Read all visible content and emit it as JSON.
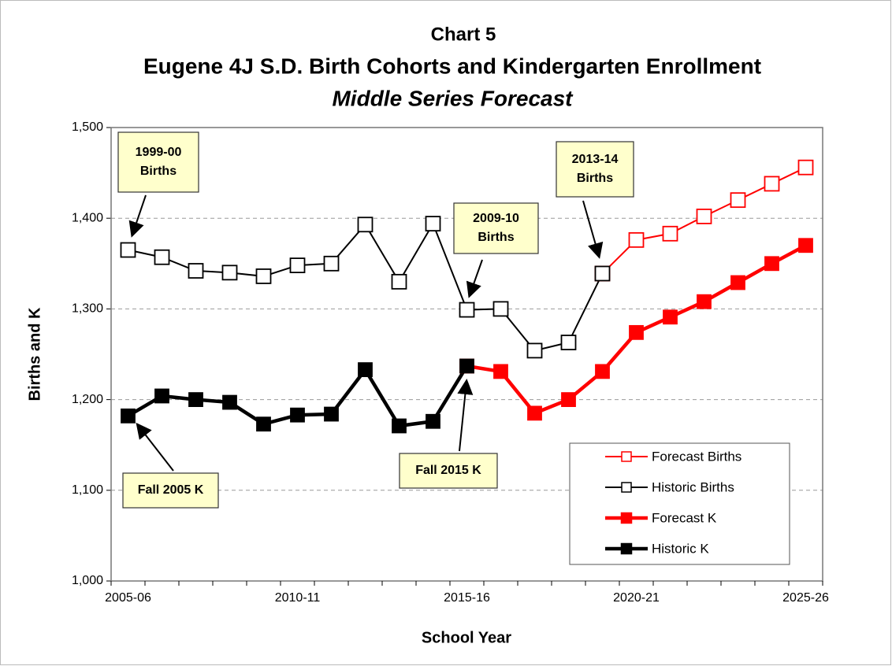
{
  "chart_data": {
    "type": "line",
    "title": "Chart 5",
    "subtitle": "Eugene 4J S.D. Birth Cohorts and Kindergarten Enrollment",
    "subtitle2": "Middle Series Forecast",
    "x_label": "School Year",
    "y_label": "Births and K",
    "categories": [
      "2005-06",
      null,
      null,
      null,
      null,
      "2010-11",
      null,
      null,
      null,
      null,
      "2015-16",
      null,
      null,
      null,
      null,
      "2020-21",
      null,
      null,
      null,
      null,
      "2025-26"
    ],
    "ylim": [
      1000,
      1500
    ],
    "yticks": [
      {
        "value": 1000,
        "label": "1,000"
      },
      {
        "value": 1100,
        "label": "1,100"
      },
      {
        "value": 1200,
        "label": "1,200"
      },
      {
        "value": 1300,
        "label": "1,300"
      },
      {
        "value": 1400,
        "label": "1,400"
      },
      {
        "value": 1500,
        "label": "1,500"
      }
    ],
    "grid": true,
    "series": [
      {
        "name": "Forecast Births",
        "color": "#ff0000",
        "marker": "hollow",
        "values": [
          null,
          null,
          null,
          null,
          null,
          null,
          null,
          null,
          null,
          null,
          null,
          null,
          null,
          null,
          1339,
          1376,
          1383,
          1402,
          1420,
          1438,
          1456
        ]
      },
      {
        "name": "Historic Births",
        "color": "#000000",
        "marker": "hollow",
        "values": [
          1365,
          1357,
          1342,
          1340,
          1336,
          1348,
          1350,
          1393,
          1330,
          1394,
          1299,
          1300,
          1254,
          1263,
          1339,
          null,
          null,
          null,
          null,
          null,
          null
        ]
      },
      {
        "name": "Forecast K",
        "color": "#ff0000",
        "marker": "filled",
        "values": [
          null,
          null,
          null,
          null,
          null,
          null,
          null,
          null,
          null,
          null,
          1237,
          1231,
          1185,
          1200,
          1231,
          1274,
          1291,
          1308,
          1329,
          1350,
          1370
        ]
      },
      {
        "name": "Historic K",
        "color": "#000000",
        "marker": "filled",
        "values": [
          1182,
          1204,
          1200,
          1197,
          1173,
          1183,
          1184,
          1233,
          1171,
          1176,
          1237,
          null,
          null,
          null,
          null,
          null,
          null,
          null,
          null,
          null,
          null
        ]
      }
    ],
    "annotations": [
      {
        "lines": [
          "1999-00",
          "Births"
        ]
      },
      {
        "lines": [
          "2009-10",
          "Births"
        ]
      },
      {
        "lines": [
          "2013-14",
          "Births"
        ]
      },
      {
        "lines": [
          "Fall 2005 K"
        ]
      },
      {
        "lines": [
          "Fall 2015 K"
        ]
      }
    ]
  }
}
